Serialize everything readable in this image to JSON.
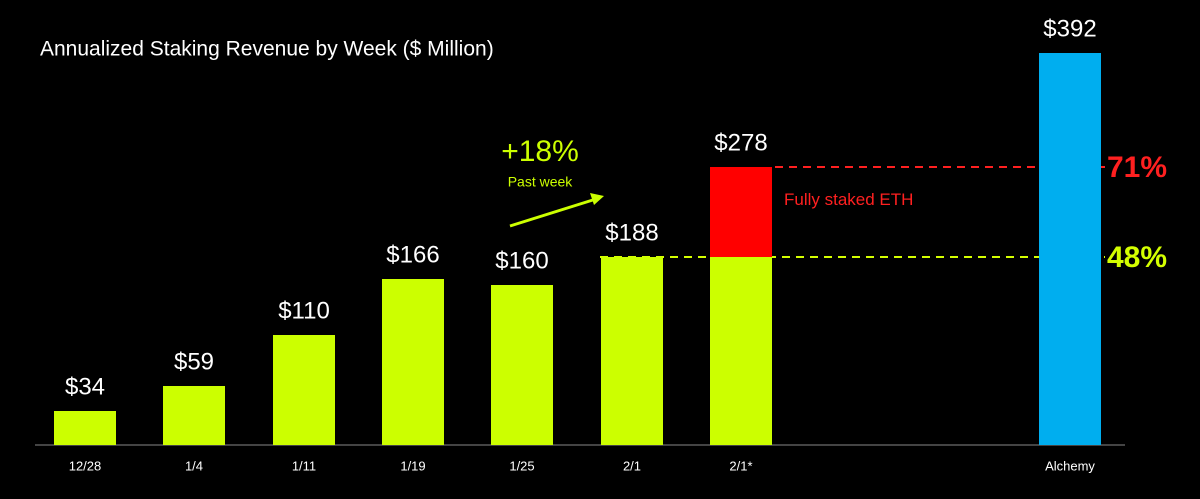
{
  "chart_data": {
    "type": "bar",
    "title": "Annualized Staking Revenue by Week ($ Million)",
    "categories": [
      "12/28",
      "1/4",
      "1/11",
      "1/19",
      "1/25",
      "2/1",
      "2/1*",
      "Alchemy"
    ],
    "series": [
      {
        "color": "#ccff00",
        "values": [
          34,
          59,
          110,
          166,
          160,
          188,
          188,
          null
        ],
        "value_labels": [
          "$34",
          "$59",
          "$110",
          "$166",
          "$160",
          "$188",
          null,
          null
        ]
      },
      {
        "name": "Fully staked ETH",
        "color": "#ff0000",
        "values": [
          null,
          null,
          null,
          null,
          null,
          null,
          90,
          null
        ]
      },
      {
        "color": "#00aeef",
        "values": [
          null,
          null,
          null,
          null,
          null,
          null,
          null,
          392
        ],
        "value_labels": [
          null,
          null,
          null,
          null,
          null,
          null,
          null,
          "$392"
        ]
      }
    ],
    "stacked": true,
    "ylim": [
      0,
      392
    ],
    "annotations": [
      {
        "text": "$278",
        "value": 278
      },
      {
        "text": "+18%"
      },
      {
        "text": "Past week"
      }
    ],
    "reference_lines": [
      {
        "value": 278,
        "label": "71%",
        "color": "#ff2020"
      },
      {
        "value": 188,
        "label": "48%",
        "color": "#d4ff00"
      }
    ]
  }
}
